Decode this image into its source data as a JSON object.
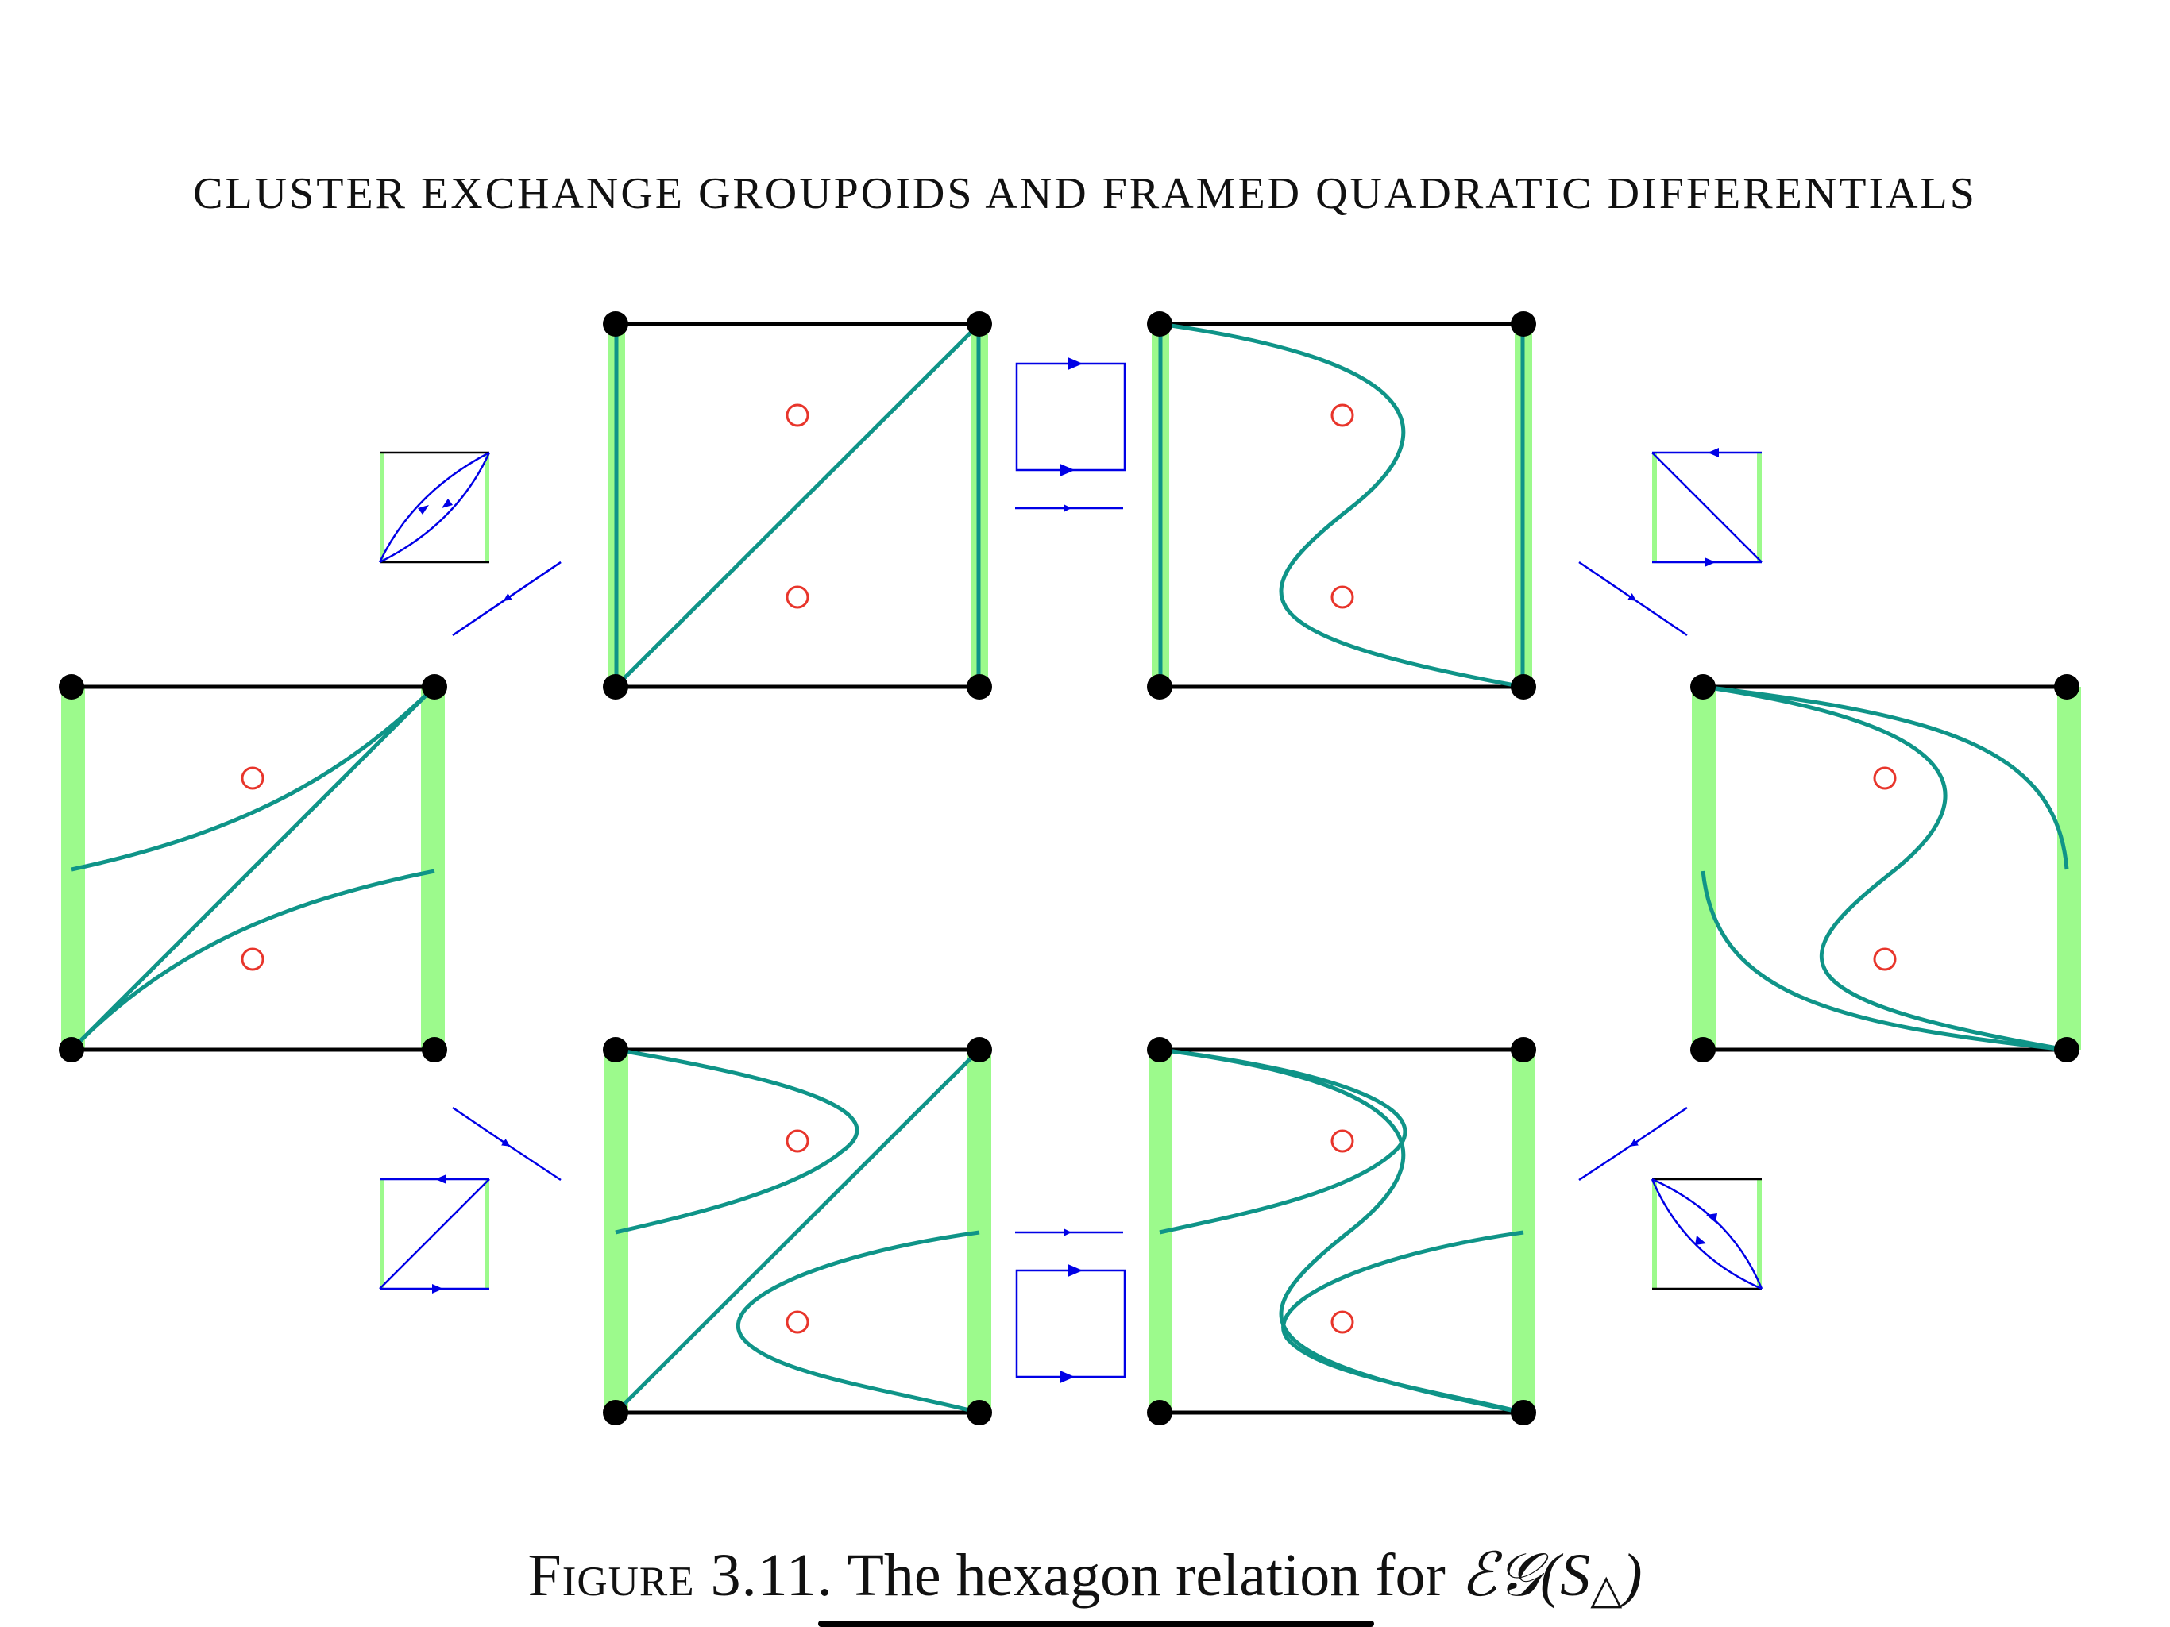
{
  "header": "CLUSTER EXCHANGE GROUPOIDS AND FRAMED QUADRATIC DIFFERENTIALS",
  "caption": {
    "label": "Figure 3.11.",
    "text": "The hexagon relation for",
    "math": "ℰ𝒢(S",
    "sub": "△",
    "close": ")"
  },
  "colors": {
    "edge": "#000000",
    "vertex": "#000000",
    "boundary_highlight": "#9cfa8c",
    "arc": "#0f9488",
    "puncture": "#e8352b",
    "arrow": "#0000e6"
  }
}
